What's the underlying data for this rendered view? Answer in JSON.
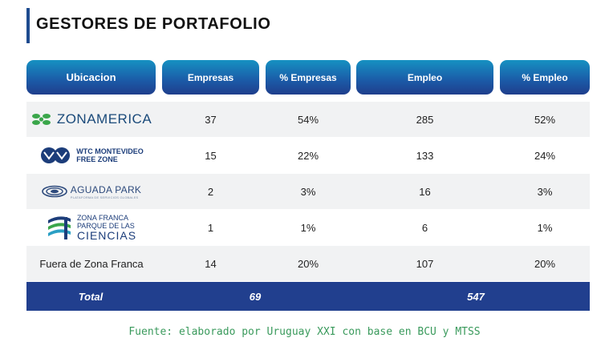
{
  "title": "GESTORES DE PORTAFOLIO",
  "headers": [
    "Ubicacion",
    "Empresas",
    "% Empresas",
    "Empleo",
    "% Empleo"
  ],
  "rows": [
    {
      "location": "ZONAMERICA",
      "empresas": "37",
      "pct_empresas": "54%",
      "empleo": "285",
      "pct_empleo": "52%"
    },
    {
      "location": "WTC MONTEVIDEO FREE ZONE",
      "empresas": "15",
      "pct_empresas": "22%",
      "empleo": "133",
      "pct_empleo": "24%"
    },
    {
      "location": "AGUADA PARK",
      "empresas": "2",
      "pct_empresas": "3%",
      "empleo": "16",
      "pct_empleo": "3%"
    },
    {
      "location": "ZONA FRANCA PARQUE DE LAS CIENCIAS",
      "empresas": "1",
      "pct_empresas": "1%",
      "empleo": "6",
      "pct_empleo": "1%"
    },
    {
      "location": "Fuera de Zona Franca",
      "empresas": "14",
      "pct_empresas": "20%",
      "empleo": "107",
      "pct_empleo": "20%"
    }
  ],
  "logos": {
    "zonamerica": "ZONAMERICA",
    "wtc_line1": "WTC MONTEVIDEO",
    "wtc_line2": "FREE ZONE",
    "aguada": "AGUADA PARK",
    "aguada_sub": "PLATAFORMA DE SERVICIOS GLOBALES",
    "zf_line1": "ZONA FRANCA",
    "zf_line2": "PARQUE DE LAS",
    "zf_line3": "CIENCIAS"
  },
  "total": {
    "label": "Total",
    "empresas": "69",
    "empleo": "547"
  },
  "source": "Fuente: elaborado por Uruguay XXI con base en BCU y MTSS",
  "colors": {
    "accent": "#1e4b8f",
    "header_top": "#1691c2",
    "header_bottom": "#1f3e8c",
    "total_bg": "#213f8e",
    "source": "#3a9a5c",
    "row_shade": "#f1f2f3"
  }
}
